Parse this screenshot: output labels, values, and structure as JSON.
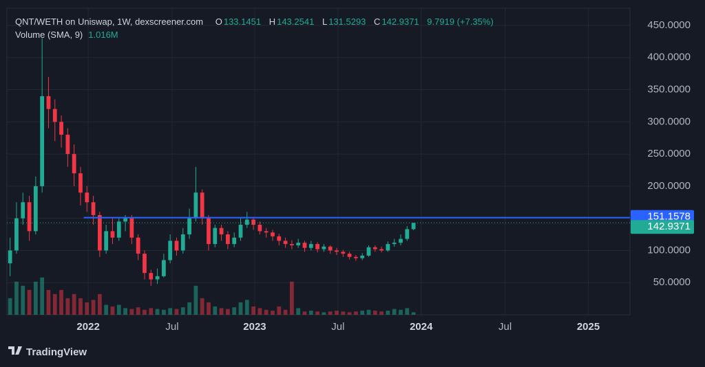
{
  "header": {
    "title": "QNT/WETH on Uniswap, 1W, dexscreener.com",
    "o_label": "O",
    "h_label": "H",
    "l_label": "L",
    "c_label": "C",
    "change": "9.7919 (+7.35%)",
    "volume_label": "Volume (SMA, 9)",
    "volume_value": "1.016M"
  },
  "footer": {
    "brand": "TradingView"
  },
  "chart_data": {
    "type": "candlestick",
    "xlim": [
      -0.5,
      96.8
    ],
    "xticks": [
      {
        "value": 12.2,
        "label": "2022"
      },
      {
        "value": 25.3,
        "label": "Jul"
      },
      {
        "value": 38.2,
        "label": "2023"
      },
      {
        "value": 51.2,
        "label": "Jul"
      },
      {
        "value": 64.2,
        "label": "2024"
      },
      {
        "value": 77.3,
        "label": "Jul"
      },
      {
        "value": 90.3,
        "label": "2025"
      }
    ],
    "ylim": [
      0,
      476.7
    ],
    "yticks": [
      {
        "value": 50,
        "label": "50.0000"
      },
      {
        "value": 100,
        "label": "100.0000"
      },
      {
        "value": 150,
        "label": "150.0000"
      },
      {
        "value": 200,
        "label": "200.0000"
      },
      {
        "value": 250,
        "label": "250.0000"
      },
      {
        "value": 300,
        "label": "300.0000"
      },
      {
        "value": 350,
        "label": "350.0000"
      },
      {
        "value": 400,
        "label": "400.0000"
      },
      {
        "value": 450,
        "label": "450.0000"
      }
    ],
    "open": [
      80,
      100,
      150,
      175,
      130,
      200,
      340,
      320,
      300,
      280,
      250,
      220,
      190,
      175,
      155,
      100,
      130,
      120,
      145,
      150,
      120,
      95,
      65,
      55,
      60,
      85,
      115,
      100,
      125,
      150,
      190,
      150,
      110,
      135,
      125,
      110,
      120,
      140,
      148,
      140,
      130,
      128,
      122,
      115,
      110,
      108,
      112,
      104,
      110,
      102,
      106,
      100,
      98,
      95,
      90,
      88,
      92,
      105,
      102,
      100,
      110,
      112,
      118,
      133.1451
    ],
    "high": [
      120,
      175,
      190,
      185,
      215,
      430,
      370,
      335,
      310,
      290,
      265,
      230,
      200,
      185,
      160,
      140,
      150,
      150,
      155,
      155,
      125,
      100,
      70,
      72,
      95,
      125,
      120,
      135,
      165,
      230,
      195,
      155,
      140,
      140,
      130,
      128,
      150,
      160,
      152,
      145,
      135,
      132,
      126,
      120,
      116,
      118,
      115,
      115,
      113,
      110,
      108,
      104,
      101,
      98,
      93,
      96,
      108,
      108,
      106,
      114,
      118,
      125,
      138,
      143.2541
    ],
    "low": [
      60,
      95,
      140,
      115,
      125,
      190,
      290,
      270,
      260,
      230,
      200,
      170,
      160,
      140,
      90,
      95,
      110,
      115,
      130,
      110,
      85,
      55,
      45,
      48,
      58,
      80,
      92,
      95,
      118,
      145,
      140,
      100,
      105,
      115,
      102,
      105,
      115,
      135,
      132,
      125,
      120,
      115,
      108,
      104,
      102,
      104,
      98,
      100,
      97,
      98,
      95,
      93,
      90,
      86,
      84,
      85,
      90,
      98,
      97,
      98,
      106,
      108,
      115,
      131.5293
    ],
    "close": [
      100,
      150,
      175,
      130,
      200,
      340,
      320,
      300,
      280,
      250,
      220,
      190,
      175,
      155,
      100,
      130,
      120,
      145,
      150,
      120,
      95,
      65,
      55,
      60,
      85,
      115,
      100,
      125,
      150,
      190,
      150,
      110,
      135,
      125,
      110,
      120,
      140,
      148,
      140,
      130,
      128,
      122,
      115,
      110,
      108,
      112,
      104,
      110,
      102,
      106,
      100,
      98,
      95,
      90,
      88,
      92,
      105,
      102,
      100,
      110,
      112,
      118,
      133.1451,
      142.9371
    ],
    "volume": [
      2,
      4,
      3.5,
      3,
      4,
      4.5,
      3,
      2.5,
      3,
      2,
      2.5,
      2,
      1.5,
      1.8,
      2.5,
      1.2,
      1,
      1.2,
      0.8,
      0.7,
      0.9,
      0.6,
      0.8,
      0.7,
      0.6,
      0.8,
      0.7,
      0.9,
      1.5,
      3.5,
      2,
      1.5,
      1,
      0.8,
      0.7,
      0.9,
      1.5,
      1.8,
      1,
      0.8,
      0.6,
      0.5,
      1,
      0.6,
      4,
      0.8,
      0.4,
      0.5,
      0.4,
      0.3,
      0.4,
      0.5,
      0.4,
      0.3,
      0.4,
      0.5,
      0.6,
      0.5,
      0.4,
      0.5,
      0.7,
      0.6,
      0.8,
      0.3
    ],
    "volume_ylim": [
      0,
      37
    ],
    "up_color": "#22ab94",
    "down_color": "#f23645",
    "level_line": {
      "value": 151.1578,
      "color": "#2962ff"
    },
    "grid": true
  }
}
